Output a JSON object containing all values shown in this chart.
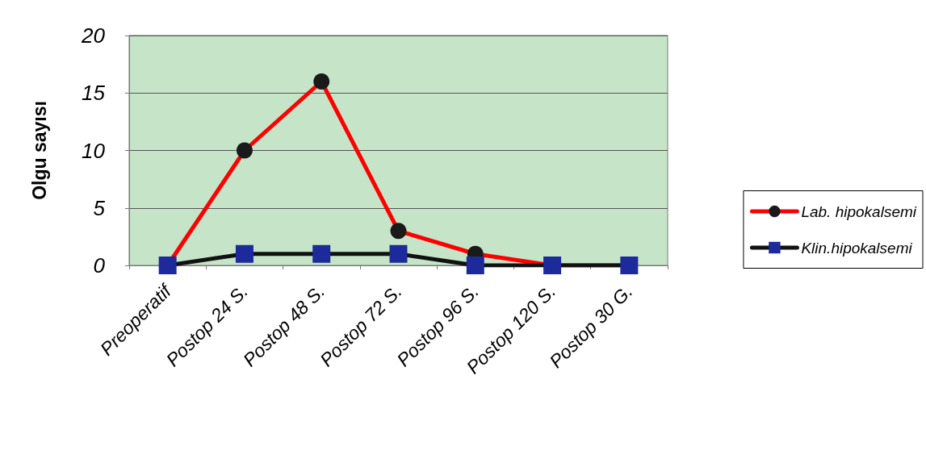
{
  "chart_data": {
    "type": "line",
    "ylabel": "Olgu sayısı",
    "categories": [
      "Preoperatif",
      "Postop 24 S.",
      "Postop 48 S.",
      "Postop 72 S.",
      "Postop 96 S.",
      "Postop 120 S.",
      "Postop 30 G."
    ],
    "series": [
      {
        "name": "Lab. hipokalsemi",
        "color": "#ff0000",
        "marker": "circle",
        "colors": [
          "#1a1a1a",
          "#1a1a1a",
          "#1a1a1a",
          "#1a1a1a",
          "#1a1a1a",
          "#1a1a1a",
          "#1a1a1a"
        ],
        "values": [
          0,
          10,
          16,
          3,
          1,
          0,
          0
        ]
      },
      {
        "name": "Klin.hipokalsemi",
        "color": "#111111",
        "marker": "square",
        "colors": [
          "#1c2a9c",
          "#1c2a9c",
          "#1c2a9c",
          "#1c2a9c",
          "#1c2a9c",
          "#1c2a9c",
          "#1c2a9c"
        ],
        "values": [
          0,
          1,
          1,
          1,
          0,
          0,
          0
        ]
      }
    ],
    "ylim": [
      0,
      20
    ],
    "yticks": [
      0,
      5,
      10,
      15,
      20
    ],
    "grid": "y",
    "legend": "right",
    "line_style": "solid"
  }
}
